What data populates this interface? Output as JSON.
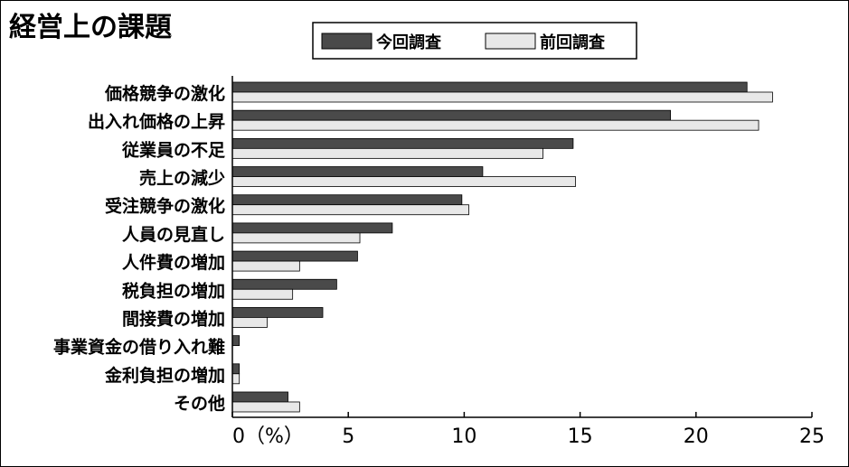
{
  "chart_data": {
    "type": "bar",
    "orientation": "horizontal",
    "title": "経営上の課題",
    "categories": [
      "価格競争の激化",
      "出入れ価格の上昇",
      "従業員の不足",
      "売上の減少",
      "受注競争の激化",
      "人員の見直し",
      "人件費の増加",
      "税負担の増加",
      "間接費の増加",
      "事業資金の借り入れ難",
      "金利負担の増加",
      "その他"
    ],
    "series": [
      {
        "name": "今回調査",
        "color": "#4a4a4a",
        "values": [
          22.2,
          18.9,
          14.7,
          10.8,
          9.9,
          6.9,
          5.4,
          4.5,
          3.9,
          0.3,
          0.3,
          2.4
        ]
      },
      {
        "name": "前回調査",
        "color": "#e8e8e8",
        "values": [
          23.3,
          22.7,
          13.4,
          14.8,
          10.2,
          5.5,
          2.9,
          2.6,
          1.5,
          0.0,
          0.3,
          2.9
        ]
      }
    ],
    "xlim": [
      0,
      25
    ],
    "xticks": [
      0,
      5,
      10,
      15,
      20,
      25
    ],
    "xtick_labels": [
      "0（%）",
      "5",
      "10",
      "15",
      "20",
      "25"
    ],
    "legend_position": "top-center",
    "grid": false
  }
}
